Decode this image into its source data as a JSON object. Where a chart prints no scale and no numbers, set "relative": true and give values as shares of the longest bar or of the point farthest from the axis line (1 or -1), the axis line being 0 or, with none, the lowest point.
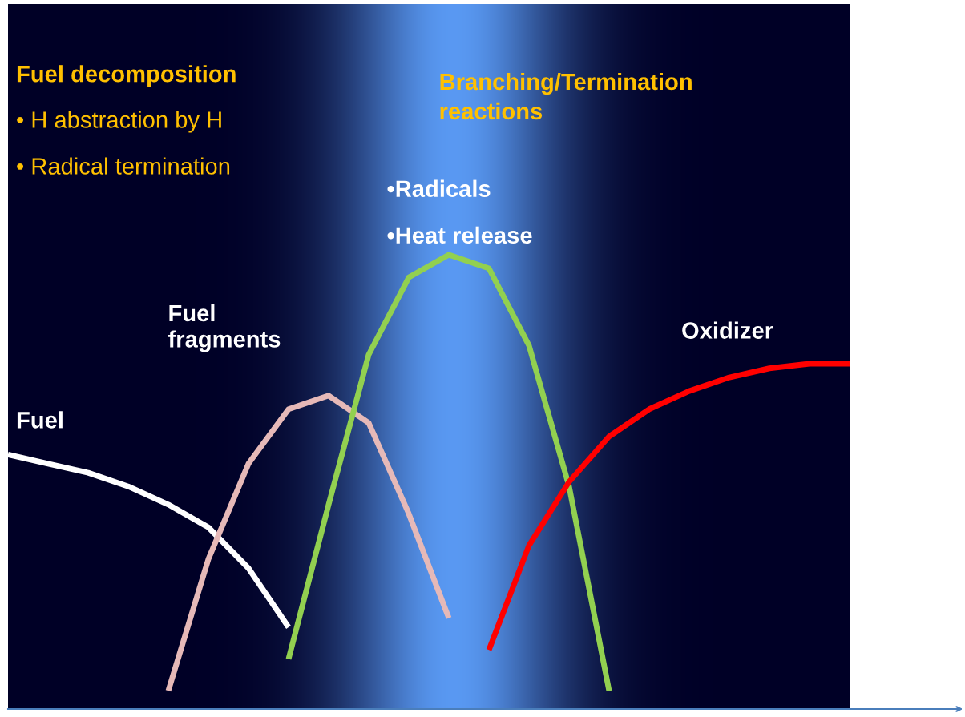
{
  "chart_data": {
    "type": "line",
    "relative": true,
    "legend": false,
    "categories": [
      null,
      null,
      null,
      null,
      null,
      null,
      null,
      null,
      null,
      null,
      null,
      null,
      null,
      null,
      null,
      null,
      null,
      null,
      null,
      null,
      null,
      null
    ],
    "series": [
      {
        "name": "Fuel",
        "color": "#ffffff",
        "values": [
          0.56,
          0.54,
          0.52,
          0.49,
          0.45,
          0.4,
          0.31,
          0.18,
          null,
          null,
          null,
          null,
          null,
          null,
          null,
          null,
          null,
          null,
          null,
          null,
          null,
          null
        ]
      },
      {
        "name": "Fuel\nfragments",
        "color": "#e6b9b8",
        "values": [
          null,
          null,
          null,
          null,
          0.04,
          0.33,
          0.54,
          0.66,
          0.69,
          0.63,
          0.43,
          0.2,
          null,
          null,
          null,
          null,
          null,
          null,
          null,
          null,
          null,
          null
        ]
      },
      {
        "color": "#92d050",
        "values": [
          null,
          null,
          null,
          null,
          null,
          null,
          null,
          0.11,
          0.45,
          0.78,
          0.95,
          1.0,
          0.97,
          0.8,
          0.49,
          0.04,
          null,
          null,
          null,
          null,
          null,
          null
        ]
      },
      {
        "name": "Oxidizer",
        "color": "#ff0000",
        "values": [
          null,
          null,
          null,
          null,
          null,
          null,
          null,
          null,
          null,
          null,
          null,
          null,
          0.13,
          0.36,
          0.5,
          0.6,
          0.66,
          0.7,
          0.73,
          0.75,
          0.76,
          0.76
        ]
      }
    ],
    "annotations": [
      "Fuel decomposition",
      "• H abstraction by H",
      "• Radical termination",
      "Branching/Termination\nreactions",
      "•Radicals",
      "•Heat release"
    ]
  }
}
